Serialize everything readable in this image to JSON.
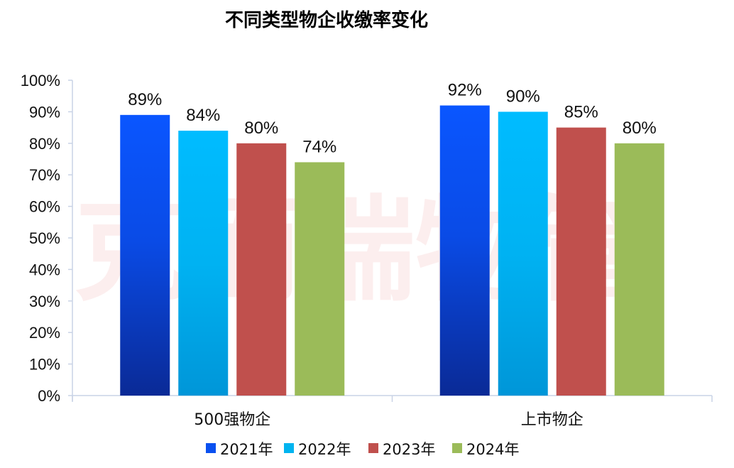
{
  "chart_data": {
    "type": "bar",
    "title": "不同类型物企收缴率变化",
    "categories": [
      "500强物企",
      "上市物企"
    ],
    "series": [
      {
        "name": "2021年",
        "values": [
          89,
          92
        ],
        "color": "#0a50f0"
      },
      {
        "name": "2022年",
        "values": [
          84,
          90
        ],
        "color": "#00b4f0"
      },
      {
        "name": "2023年",
        "values": [
          80,
          85
        ],
        "color": "#c0504d"
      },
      {
        "name": "2024年",
        "values": [
          74,
          80
        ],
        "color": "#9bbb59"
      }
    ],
    "data_labels": [
      [
        "89%",
        "92%"
      ],
      [
        "84%",
        "90%"
      ],
      [
        "80%",
        "85%"
      ],
      [
        "74%",
        "80%"
      ]
    ],
    "yticks": [
      "0%",
      "10%",
      "20%",
      "30%",
      "40%",
      "50%",
      "60%",
      "70%",
      "80%",
      "90%",
      "100%"
    ],
    "ylim": [
      0,
      100
    ],
    "grid": false,
    "legend_position": "bottom",
    "watermark": "克而瑞物管"
  }
}
